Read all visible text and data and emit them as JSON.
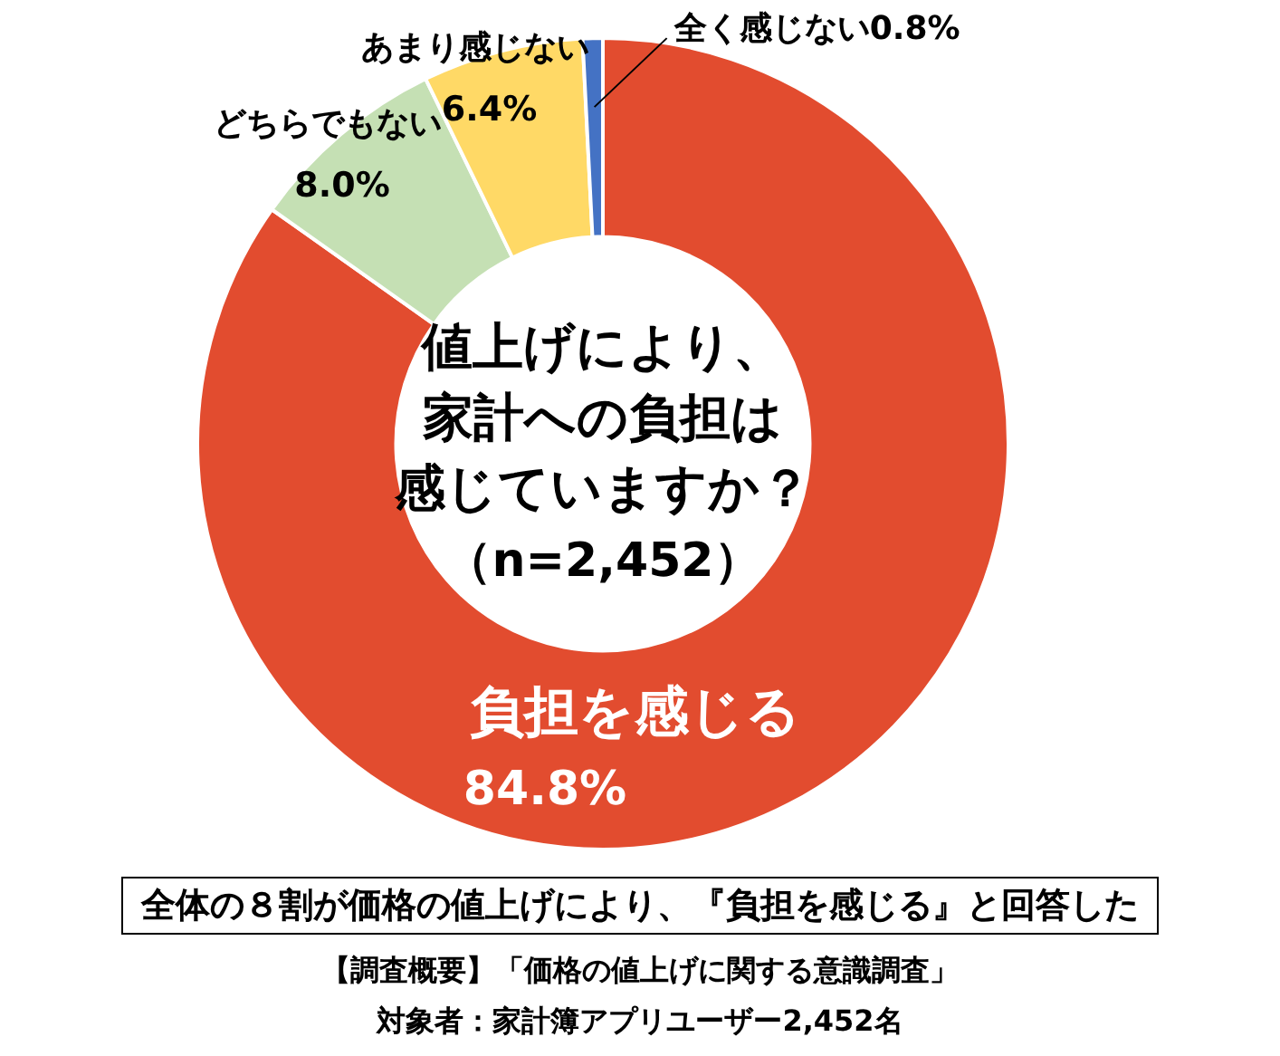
{
  "chart_data": {
    "type": "donut",
    "title": "値上げにより、家計への負担は感じていますか？",
    "subtitle": "（n=2,452）",
    "categories": [
      "負担を感じる",
      "どちらでもない",
      "あまり感じない",
      "全く感じない"
    ],
    "values": [
      84.8,
      8.0,
      6.4,
      0.8
    ],
    "value_labels": [
      "84.8%",
      "8.0%",
      "6.4%",
      "0.8%"
    ],
    "colors": [
      "#e24c2f",
      "#c5e0b4",
      "#ffd966",
      "#4472c4"
    ],
    "legend": false,
    "annotations": [
      "全体の８割が価格の値上げにより、『負担を感じる』と回答した",
      "【調査概要】「価格の値上げに関する意識調査」",
      "対象者：家計簿アプリユーザー2,452名"
    ]
  }
}
